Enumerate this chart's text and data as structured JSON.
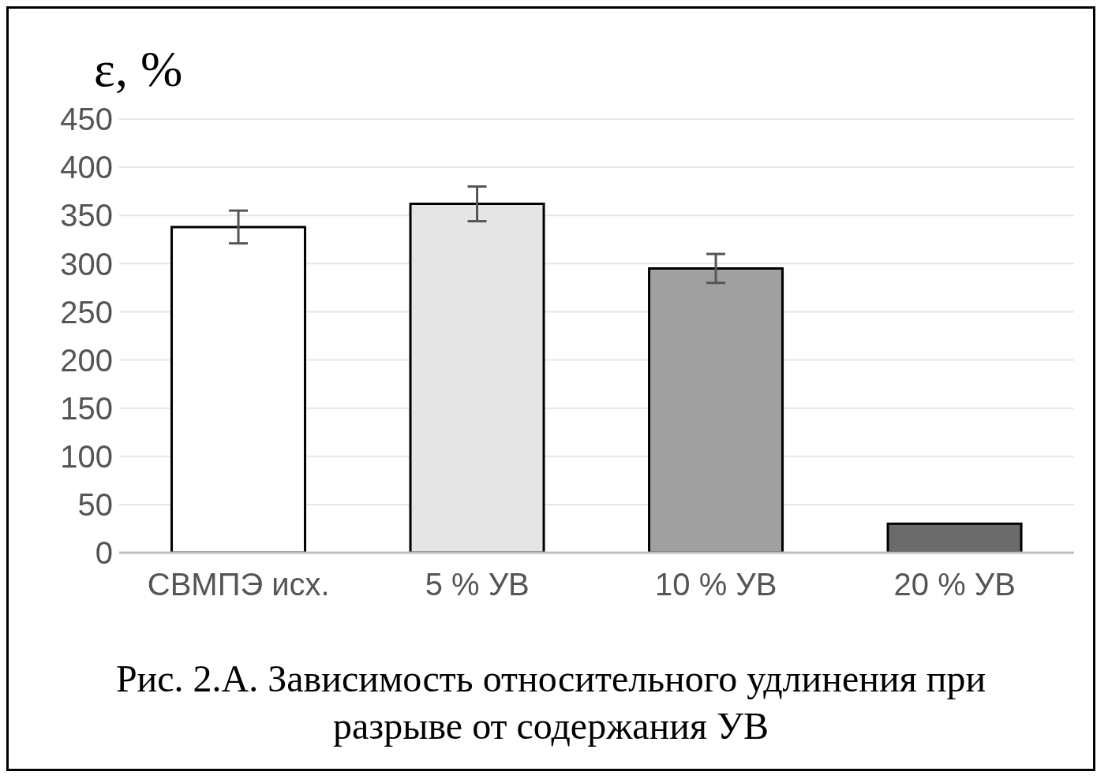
{
  "chart_data": {
    "type": "bar",
    "title": "Рис. 2.А. Зависимость относительного удлинения при разрыве от содержания УВ",
    "ylabel": "ε, %",
    "categories": [
      "СВМПЭ исх.",
      "5 % УВ",
      "10 % УВ",
      "20 % УВ"
    ],
    "values": [
      338,
      362,
      295,
      30
    ],
    "colors": [
      "#ffffff",
      "#e5e5e5",
      "#a0a0a0",
      "#6b6b6b"
    ],
    "errors": [
      17,
      18,
      15,
      null
    ],
    "ylim": [
      0,
      450
    ],
    "yticks": [
      0,
      50,
      100,
      150,
      200,
      250,
      300,
      350,
      400,
      450
    ],
    "grid": "y"
  }
}
